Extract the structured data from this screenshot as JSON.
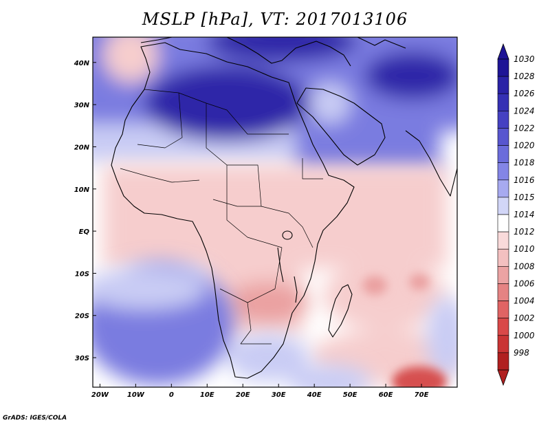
{
  "title": "MSLP [hPa], VT: 2017013106",
  "credit": "GrADS: IGES/COLA",
  "variable": "MSLP",
  "units": "hPa",
  "valid_time": "2017013106",
  "map": {
    "lon_range": [
      -22,
      80
    ],
    "lat_range": [
      -37,
      46
    ],
    "lon_ticks": [
      {
        "value": -20,
        "label": "20W"
      },
      {
        "value": -10,
        "label": "10W"
      },
      {
        "value": 0,
        "label": "0"
      },
      {
        "value": 10,
        "label": "10E"
      },
      {
        "value": 20,
        "label": "20E"
      },
      {
        "value": 30,
        "label": "30E"
      },
      {
        "value": 40,
        "label": "40E"
      },
      {
        "value": 50,
        "label": "50E"
      },
      {
        "value": 60,
        "label": "60E"
      },
      {
        "value": 70,
        "label": "70E"
      }
    ],
    "lat_ticks": [
      {
        "value": 40,
        "label": "40N"
      },
      {
        "value": 30,
        "label": "30N"
      },
      {
        "value": 20,
        "label": "20N"
      },
      {
        "value": 10,
        "label": "10N"
      },
      {
        "value": 0,
        "label": "EQ"
      },
      {
        "value": -10,
        "label": "10S"
      },
      {
        "value": -20,
        "label": "20S"
      },
      {
        "value": -30,
        "label": "30S"
      }
    ]
  },
  "colorbar": [
    {
      "label": "1030",
      "color": "#1e1496"
    },
    {
      "label": "1028",
      "color": "#2a22a6"
    },
    {
      "label": "1026",
      "color": "#3530b4"
    },
    {
      "label": "1024",
      "color": "#4541c2"
    },
    {
      "label": "1022",
      "color": "#5856cf"
    },
    {
      "label": "1020",
      "color": "#6b6cdb"
    },
    {
      "label": "1018",
      "color": "#8385e6"
    },
    {
      "label": "1016",
      "color": "#a7aaf0"
    },
    {
      "label": "1015",
      "color": "#d2d6f7"
    },
    {
      "label": "1014",
      "color": "#ffffff"
    },
    {
      "label": "1012",
      "color": "#f9dada"
    },
    {
      "label": "1010",
      "color": "#f3c0c0"
    },
    {
      "label": "1008",
      "color": "#eba3a3"
    },
    {
      "label": "1006",
      "color": "#e58383"
    },
    {
      "label": "1004",
      "color": "#e06464"
    },
    {
      "label": "1002",
      "color": "#d94848"
    },
    {
      "label": "1000",
      "color": "#c93434"
    },
    {
      "label": "998",
      "color": "#b02020"
    }
  ],
  "colors": {
    "high_pressure_core": "#2f28a8",
    "mid_blue": "#7a7ce0",
    "light_blue": "#c9ccf4",
    "neutral": "#ffffff",
    "light_red": "#f6cdcd",
    "mid_red": "#eaa0a0",
    "low_pressure_core": "#d65050",
    "coastline": "#000000"
  }
}
